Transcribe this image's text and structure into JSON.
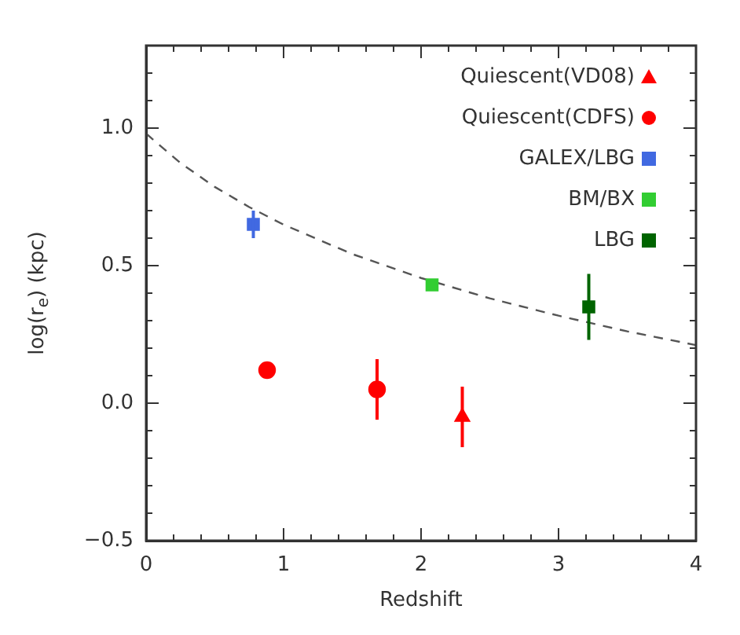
{
  "chart_data": {
    "type": "scatter",
    "xlabel": "Redshift",
    "ylabel": "log(r$_{e}$) (kpc)",
    "xlim": [
      0,
      4
    ],
    "ylim": [
      -0.5,
      1.3
    ],
    "xticks": [
      0,
      {
        "value": 0.2,
        "label": null
      },
      {
        "value": 0.4,
        "label": null
      },
      {
        "value": 0.6,
        "label": null
      },
      {
        "value": 0.8,
        "label": null
      },
      1,
      {
        "value": 1.2,
        "label": null
      },
      {
        "value": 1.4,
        "label": null
      },
      {
        "value": 1.6,
        "label": null
      },
      {
        "value": 1.8,
        "label": null
      },
      2,
      {
        "value": 2.2,
        "label": null
      },
      {
        "value": 2.4,
        "label": null
      },
      {
        "value": 2.6,
        "label": null
      },
      {
        "value": 2.8,
        "label": null
      },
      3,
      {
        "value": 3.2,
        "label": null
      },
      {
        "value": 3.4,
        "label": null
      },
      {
        "value": 3.6,
        "label": null
      },
      {
        "value": 3.8,
        "label": null
      },
      4
    ],
    "yticks": [
      {
        "value": -0.5,
        "label": "−0.5"
      },
      {
        "value": -0.4,
        "label": null
      },
      {
        "value": -0.3,
        "label": null
      },
      {
        "value": -0.2,
        "label": null
      },
      {
        "value": -0.1,
        "label": null
      },
      {
        "value": 0,
        "label": "0.0"
      },
      {
        "value": 0.1,
        "label": null
      },
      {
        "value": 0.2,
        "label": null
      },
      {
        "value": 0.3,
        "label": null
      },
      {
        "value": 0.4,
        "label": null
      },
      {
        "value": 0.5,
        "label": "0.5"
      },
      {
        "value": 0.6,
        "label": null
      },
      {
        "value": 0.7,
        "label": null
      },
      {
        "value": 0.8,
        "label": null
      },
      {
        "value": 0.9,
        "label": null
      },
      {
        "value": 1.0,
        "label": "1.0"
      },
      {
        "value": 1.1,
        "label": null
      },
      {
        "value": 1.2,
        "label": null
      }
    ],
    "grid": false,
    "legend": "top right",
    "series": [
      {
        "name": "Quiescent(VD08)",
        "color": "#ff0000",
        "marker": "triangle",
        "x": [
          2.3
        ],
        "values": [
          -0.05
        ],
        "errors": [
          0.11
        ]
      },
      {
        "name": "Quiescent(CDFS)",
        "color": "#ff0000",
        "marker": "circle",
        "x": [
          0.88,
          1.68
        ],
        "values": [
          0.12,
          0.05
        ],
        "errors": [
          null,
          0.11
        ]
      },
      {
        "name": "GALEX/LBG",
        "color": "#4169e1",
        "marker": "square",
        "x": [
          0.78
        ],
        "values": [
          0.65
        ],
        "errors": [
          0.05
        ]
      },
      {
        "name": "BM/BX",
        "color": "#32cd32",
        "marker": "square",
        "x": [
          2.08
        ],
        "values": [
          0.43
        ],
        "errors": [
          0.02
        ]
      },
      {
        "name": "LBG",
        "color": "#006400",
        "marker": "square",
        "x": [
          3.22
        ],
        "values": [
          0.35
        ],
        "errors": [
          0.12
        ]
      },
      {
        "type": "line",
        "color": "#555555",
        "line_style": "dashed",
        "marker": "none",
        "x": [
          0,
          0.25,
          0.5,
          0.75,
          1,
          1.5,
          2,
          2.5,
          3,
          3.5,
          4
        ],
        "values": [
          0.98,
          0.873,
          0.786,
          0.713,
          0.649,
          0.542,
          0.455,
          0.381,
          0.318,
          0.261,
          0.211
        ]
      }
    ]
  }
}
